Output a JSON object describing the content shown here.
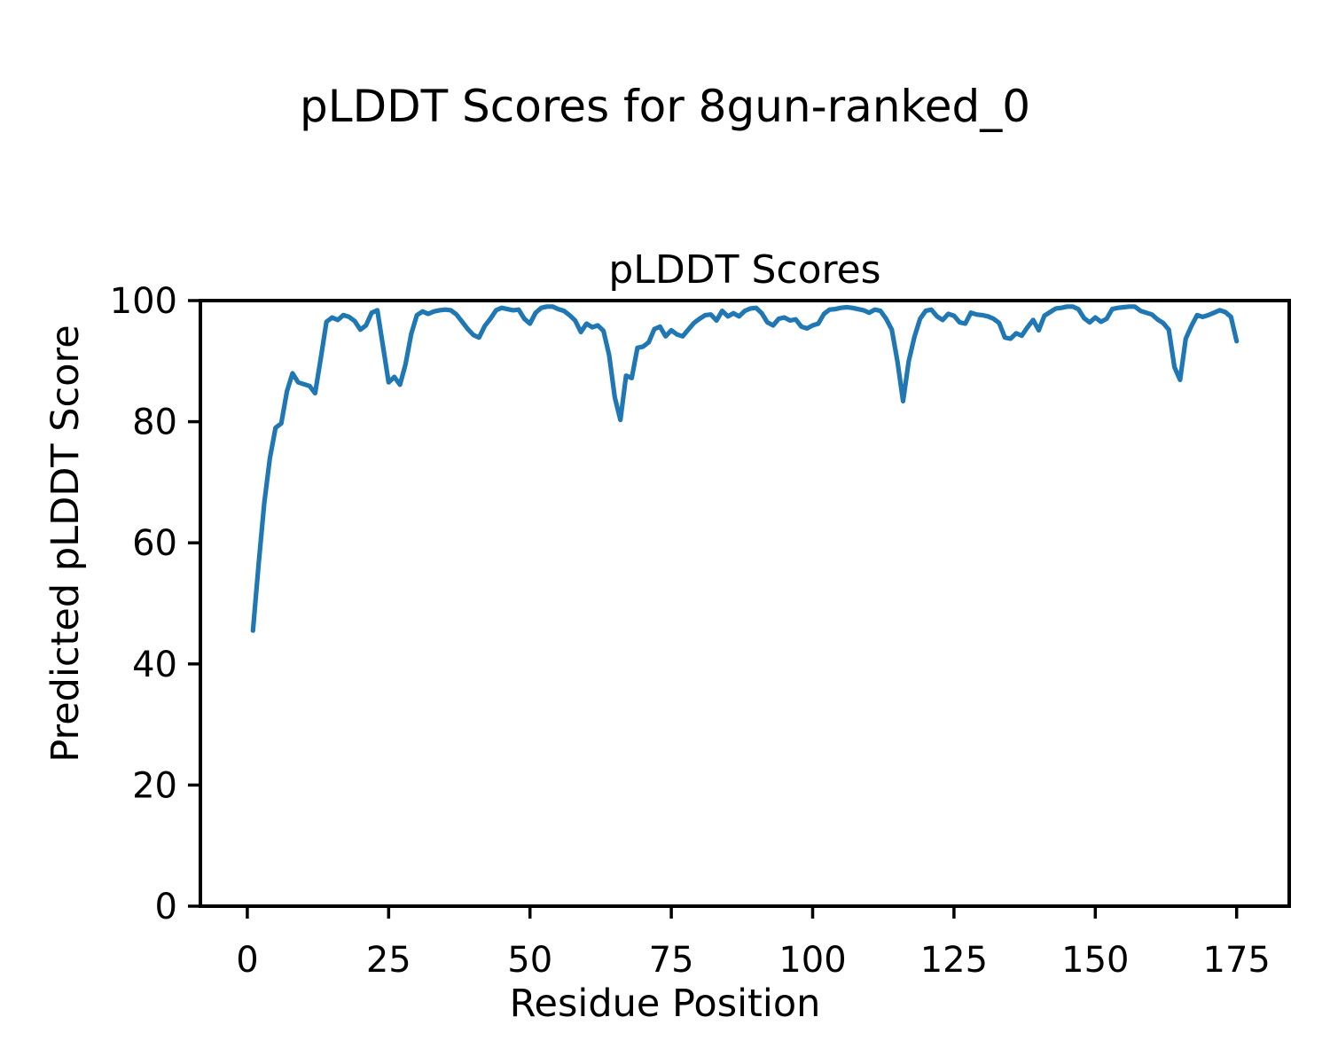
{
  "chart_data": {
    "type": "line",
    "suptitle": "pLDDT Scores for 8gun-ranked_0",
    "title": "pLDDT Scores",
    "xlabel": "Residue Position",
    "ylabel": "Predicted pLDDT Score",
    "x_ticks": [
      0,
      25,
      50,
      75,
      100,
      125,
      150,
      175
    ],
    "y_ticks": [
      0,
      20,
      40,
      60,
      80,
      100
    ],
    "xlim": [
      -8.3,
      184.3
    ],
    "ylim": [
      0,
      100
    ],
    "grid": false,
    "legend": "none",
    "line_color": "#1f77b4",
    "x_start": 1,
    "n_points": 175,
    "series": [
      {
        "name": "pLDDT",
        "values": [
          45.5,
          56.5,
          66.5,
          74.0,
          79.0,
          79.7,
          85.0,
          88.0,
          86.5,
          86.2,
          85.9,
          84.7,
          90.5,
          96.5,
          97.2,
          96.8,
          97.6,
          97.3,
          96.6,
          95.2,
          95.9,
          98.0,
          98.4,
          92.5,
          86.5,
          87.4,
          86.1,
          89.5,
          94.5,
          97.6,
          98.2,
          97.8,
          98.2,
          98.4,
          98.5,
          98.4,
          97.7,
          96.5,
          95.3,
          94.3,
          93.9,
          95.8,
          97.0,
          98.4,
          98.8,
          98.6,
          98.4,
          98.5,
          97.0,
          96.2,
          98.0,
          98.8,
          99.0,
          99.0,
          98.6,
          98.3,
          97.6,
          96.7,
          94.8,
          96.2,
          95.6,
          95.9,
          95.0,
          91.0,
          84.0,
          80.3,
          87.6,
          87.2,
          92.2,
          92.4,
          93.1,
          95.3,
          95.7,
          94.1,
          95.1,
          94.4,
          94.1,
          95.2,
          96.3,
          97.0,
          97.6,
          97.7,
          96.7,
          98.3,
          97.4,
          97.9,
          97.4,
          98.3,
          98.7,
          98.8,
          97.9,
          96.4,
          95.9,
          97.0,
          97.2,
          96.7,
          96.9,
          95.7,
          95.4,
          95.9,
          96.2,
          97.8,
          98.5,
          98.6,
          98.8,
          98.9,
          98.8,
          98.6,
          98.4,
          98.0,
          98.5,
          98.3,
          97.0,
          95.2,
          90.0,
          83.4,
          90.0,
          94.0,
          97.0,
          98.3,
          98.5,
          97.4,
          96.8,
          97.8,
          97.5,
          96.4,
          96.2,
          98.0,
          97.7,
          97.6,
          97.4,
          97.0,
          96.3,
          93.9,
          93.7,
          94.6,
          94.2,
          95.6,
          96.8,
          95.1,
          97.5,
          98.1,
          98.7,
          98.8,
          99.0,
          99.0,
          98.6,
          97.1,
          96.4,
          97.2,
          96.5,
          97.0,
          98.6,
          98.8,
          98.9,
          99.0,
          99.0,
          98.3,
          98.0,
          97.7,
          96.9,
          96.3,
          95.2,
          89.0,
          86.9,
          93.7,
          95.8,
          97.6,
          97.3,
          97.6,
          98.0,
          98.4,
          98.1,
          97.3,
          93.3
        ]
      }
    ]
  }
}
